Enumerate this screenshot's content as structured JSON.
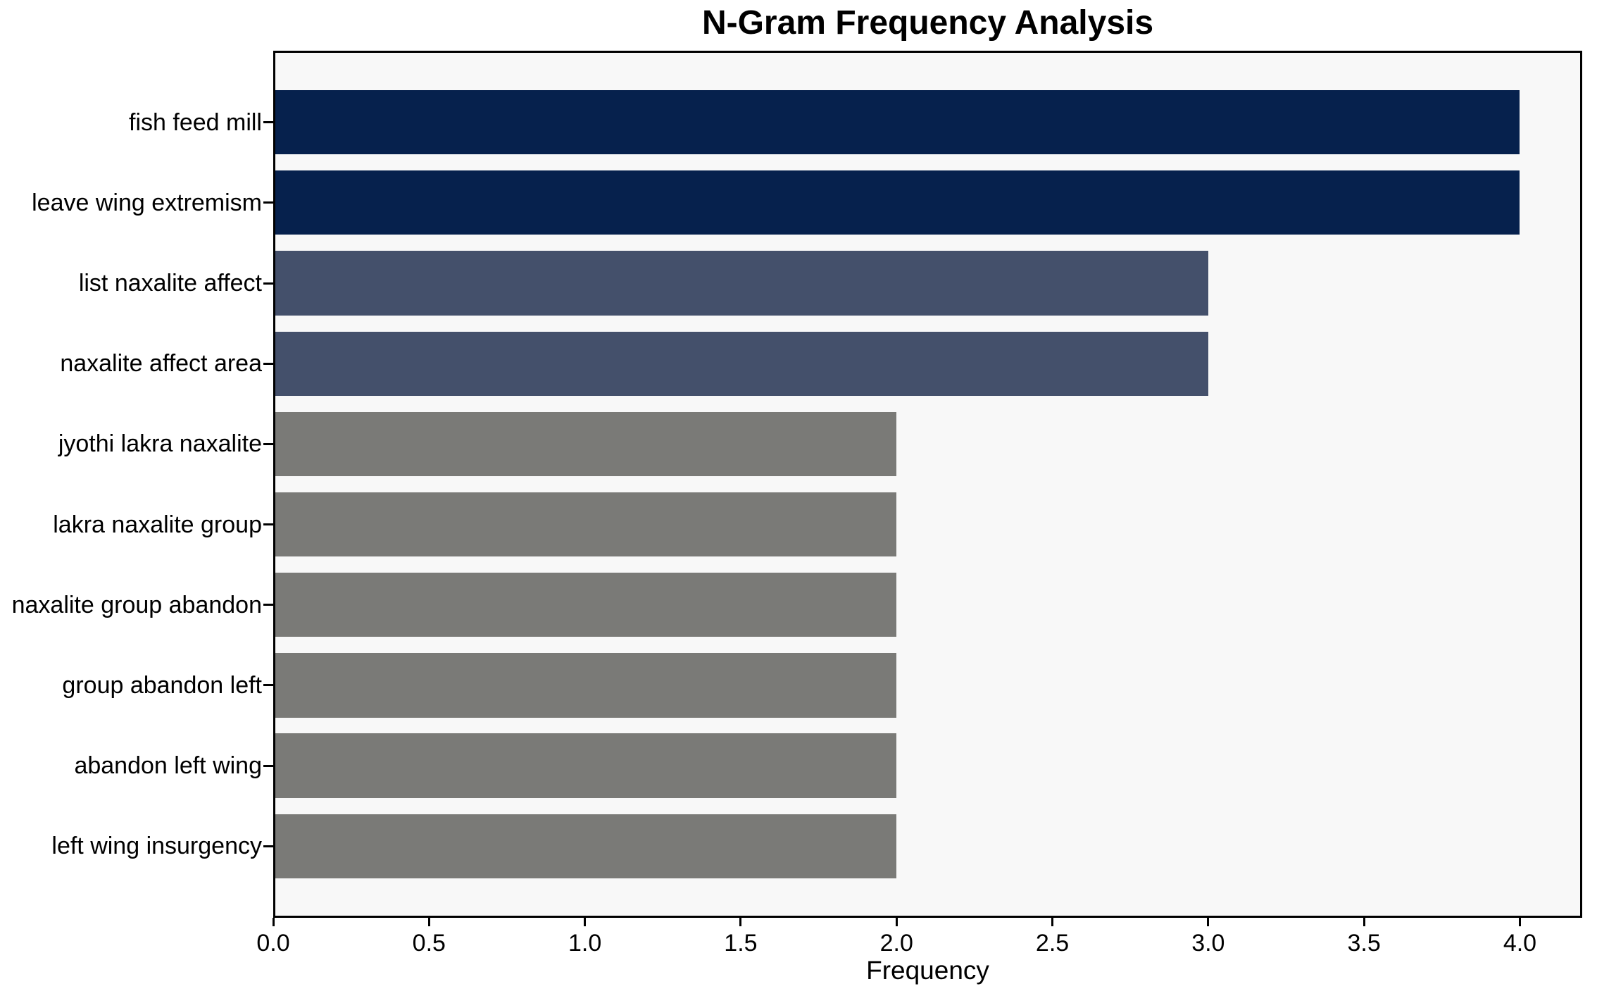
{
  "chart_data": {
    "type": "bar",
    "orientation": "horizontal",
    "title": "N-Gram Frequency Analysis",
    "xlabel": "Frequency",
    "ylabel": "",
    "categories": [
      "fish feed mill",
      "leave wing extremism",
      "list naxalite affect",
      "naxalite affect area",
      "jyothi lakra naxalite",
      "lakra naxalite group",
      "naxalite group abandon",
      "group abandon left",
      "abandon left wing",
      "left wing insurgency"
    ],
    "values": [
      4,
      4,
      3,
      3,
      2,
      2,
      2,
      2,
      2,
      2
    ],
    "bar_colors": [
      "#06214D",
      "#06214D",
      "#44506B",
      "#44506B",
      "#7A7A77",
      "#7A7A77",
      "#7A7A77",
      "#7A7A77",
      "#7A7A77",
      "#7A7A77"
    ],
    "color_legend": {
      "frequency_4": "#06214D",
      "frequency_3": "#44506B",
      "frequency_2": "#7A7A77"
    },
    "x_ticks": [
      "0.0",
      "0.5",
      "1.0",
      "1.5",
      "2.0",
      "2.5",
      "3.0",
      "3.5",
      "4.0"
    ],
    "x_tick_values": [
      0,
      0.5,
      1.0,
      1.5,
      2.0,
      2.5,
      3.0,
      3.5,
      4.0
    ],
    "xlim": [
      0,
      4.2
    ],
    "grid": false,
    "legend": null,
    "plot_background": "#F8F8F8",
    "spine_color": "#000000"
  }
}
